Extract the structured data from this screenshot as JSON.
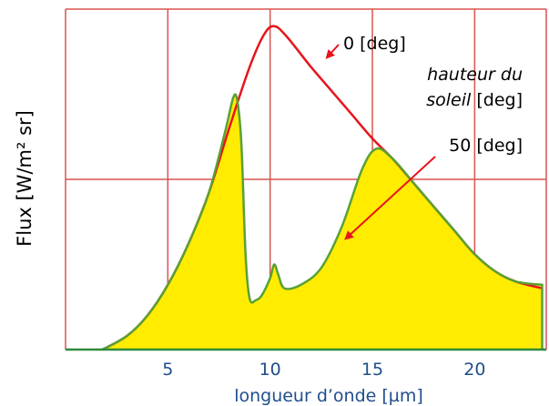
{
  "chart_data": {
    "type": "area",
    "title": "",
    "xlabel": "longueur d’onde [µm]",
    "ylabel": "Flux [W/m² sr]",
    "xlim": [
      0,
      23.5
    ],
    "ylim": [
      0,
      100
    ],
    "xticks": [
      5,
      10,
      15,
      20
    ],
    "grid": true,
    "colors": {
      "grid": "#d9534f",
      "axis": "#2e8b3a",
      "curve_0": "#e8141c",
      "curve_50": "#58a136",
      "fill_50": "#ffec00",
      "arrow": "#e8141c",
      "text_blue": "#1f4e8c"
    },
    "series": [
      {
        "name": "0 [deg]",
        "x": [
          1.8,
          3,
          4,
          5,
          6,
          7,
          8,
          9,
          9.7,
          10.2,
          10.8,
          12,
          13,
          14,
          15,
          16,
          17,
          18,
          19,
          20,
          21,
          22,
          23.3
        ],
        "y": [
          0,
          4,
          10,
          19,
          31,
          46,
          65,
          83,
          92.5,
          95,
          92,
          83,
          76,
          69,
          62,
          56,
          49,
          42,
          35,
          28,
          23,
          20,
          18
        ]
      },
      {
        "name": "50 [deg]",
        "x": [
          1.8,
          3,
          4,
          5,
          6,
          7,
          7.8,
          8.2,
          8.4,
          8.6,
          8.8,
          9.0,
          9.3,
          9.6,
          10.0,
          10.2,
          10.4,
          10.7,
          11.5,
          12.5,
          13.5,
          14.5,
          15.2,
          16,
          17,
          18,
          19,
          20,
          21,
          22,
          23.3,
          23.3
        ],
        "y": [
          0,
          4,
          10,
          19,
          31,
          46,
          64,
          74,
          73,
          60,
          28,
          15,
          14.5,
          16,
          21,
          25,
          22,
          18,
          19,
          24,
          36,
          53,
          59,
          56,
          49,
          42,
          35,
          28,
          23,
          20,
          19,
          0
        ]
      }
    ],
    "annotations": [
      {
        "text": "0 [deg]",
        "points_to": [
          12.5,
          86
        ]
      },
      {
        "text_italic": "hauteur du",
        "text_italic2": "soleil",
        "text_suffix": " [deg]"
      },
      {
        "text": "50 [deg]",
        "points_to": [
          13.6,
          32
        ]
      }
    ]
  }
}
